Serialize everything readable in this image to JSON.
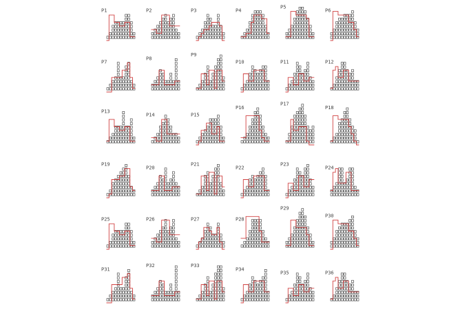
{
  "chart_data": {
    "type": "bar",
    "subtype": "stacked-unit-squares-with-step-line",
    "grid": false,
    "colors": {
      "squares": "#333333",
      "step_line": "#d04040"
    },
    "panels": [
      {
        "name": "P1",
        "counts": [
          1,
          2,
          4,
          5,
          5,
          5,
          5,
          7,
          7,
          5,
          2
        ],
        "step": [
          0,
          7,
          7,
          5,
          5,
          4,
          4,
          5,
          5,
          1,
          1
        ]
      },
      {
        "name": "P2",
        "counts": [
          2,
          3,
          4,
          5,
          6,
          7,
          5,
          6,
          7,
          3,
          2
        ],
        "step": [
          3,
          3,
          2,
          2,
          7,
          7,
          7,
          4,
          4,
          4,
          4
        ]
      },
      {
        "name": "P3",
        "counts": [
          1,
          2,
          3,
          5,
          7,
          6,
          4,
          4,
          7,
          4,
          2
        ],
        "step": [
          0,
          1,
          2,
          3,
          3,
          4,
          5,
          5,
          5,
          4,
          0
        ]
      },
      {
        "name": "P4",
        "counts": [
          1,
          2,
          3,
          5,
          7,
          8,
          8,
          8,
          7,
          4,
          2
        ],
        "step": [
          1,
          1,
          2,
          2,
          5,
          7,
          7,
          7,
          6,
          6,
          2
        ]
      },
      {
        "name": "P5",
        "counts": [
          2,
          3,
          4,
          6,
          8,
          9,
          9,
          8,
          6,
          4,
          2
        ],
        "step": [
          1,
          1,
          8,
          8,
          7,
          7,
          7,
          7,
          6,
          1,
          1
        ]
      },
      {
        "name": "P6",
        "counts": [
          2,
          3,
          5,
          6,
          6,
          7,
          7,
          7,
          8,
          5,
          3
        ],
        "step": [
          0,
          8,
          8,
          7,
          7,
          7,
          7,
          5,
          5,
          3,
          1
        ]
      },
      {
        "name": "P7",
        "counts": [
          1,
          2,
          3,
          4,
          8,
          4,
          4,
          7,
          8,
          3,
          2
        ],
        "step": [
          0,
          0,
          4,
          4,
          4,
          4,
          6,
          6,
          8,
          4,
          1
        ]
      },
      {
        "name": "P8",
        "counts": [
          2,
          3,
          4,
          6,
          5,
          3,
          3,
          5,
          3,
          9,
          3
        ],
        "step": [
          2,
          2,
          2,
          6,
          6,
          2,
          2,
          2,
          2,
          3,
          3
        ]
      },
      {
        "name": "P9",
        "counts": [
          1,
          2,
          3,
          5,
          7,
          3,
          5,
          7,
          9,
          10,
          4
        ],
        "step": [
          1,
          1,
          5,
          5,
          2,
          6,
          6,
          1,
          6,
          6,
          3
        ]
      },
      {
        "name": "P10",
        "counts": [
          1,
          2,
          3,
          5,
          7,
          6,
          5,
          6,
          7,
          7,
          3
        ],
        "step": [
          0,
          5,
          5,
          3,
          3,
          6,
          6,
          6,
          6,
          3,
          3
        ]
      },
      {
        "name": "P11",
        "counts": [
          1,
          2,
          3,
          5,
          8,
          7,
          5,
          6,
          8,
          4,
          3
        ],
        "step": [
          0,
          4,
          4,
          2,
          2,
          5,
          5,
          3,
          3,
          4,
          4
        ]
      },
      {
        "name": "P12",
        "counts": [
          1,
          2,
          4,
          6,
          8,
          8,
          6,
          5,
          6,
          3,
          3
        ],
        "step": [
          1,
          6,
          7,
          4,
          4,
          6,
          6,
          3,
          3,
          3,
          3
        ]
      },
      {
        "name": "P13",
        "counts": [
          1,
          2,
          3,
          5,
          5,
          5,
          9,
          5,
          5,
          7,
          2
        ],
        "step": [
          1,
          7,
          7,
          5,
          5,
          4,
          4,
          5,
          5,
          1,
          1
        ]
      },
      {
        "name": "P14",
        "counts": [
          1,
          2,
          3,
          5,
          6,
          8,
          7,
          5,
          3,
          3,
          2
        ],
        "step": [
          2,
          2,
          1,
          1,
          7,
          7,
          3,
          3,
          3,
          3,
          3
        ]
      },
      {
        "name": "P15",
        "counts": [
          1,
          2,
          3,
          4,
          5,
          7,
          7,
          7,
          8,
          5,
          2
        ],
        "step": [
          0,
          1,
          4,
          4,
          6,
          6,
          3,
          3,
          5,
          1,
          1
        ]
      },
      {
        "name": "P16",
        "counts": [
          1,
          2,
          3,
          5,
          7,
          9,
          10,
          8,
          5,
          3,
          2
        ],
        "step": [
          2,
          2,
          8,
          8,
          8,
          8,
          8,
          4,
          2,
          1,
          1
        ]
      },
      {
        "name": "P17",
        "counts": [
          1,
          3,
          5,
          8,
          9,
          10,
          11,
          8,
          5,
          4,
          5
        ],
        "step": [
          1,
          1,
          7,
          4,
          4,
          5,
          5,
          5,
          1,
          0,
          0
        ]
      },
      {
        "name": "P18",
        "counts": [
          1,
          2,
          3,
          6,
          7,
          9,
          10,
          7,
          5,
          4,
          1
        ],
        "step": [
          1,
          8,
          8,
          7,
          7,
          7,
          7,
          5,
          3,
          1,
          0
        ]
      },
      {
        "name": "P19",
        "counts": [
          1,
          2,
          4,
          5,
          6,
          7,
          8,
          9,
          6,
          3,
          2
        ],
        "step": [
          0,
          1,
          5,
          5,
          5,
          6,
          6,
          8,
          8,
          3,
          2
        ]
      },
      {
        "name": "P20",
        "counts": [
          2,
          3,
          4,
          6,
          5,
          8,
          4,
          5,
          7,
          4,
          3
        ],
        "step": [
          2,
          2,
          2,
          6,
          6,
          2,
          2,
          2,
          3,
          3,
          3
        ]
      },
      {
        "name": "P21",
        "counts": [
          1,
          2,
          3,
          6,
          7,
          4,
          6,
          8,
          9,
          4,
          2
        ],
        "step": [
          1,
          1,
          6,
          6,
          2,
          7,
          7,
          1,
          6,
          6,
          3
        ]
      },
      {
        "name": "P22",
        "counts": [
          1,
          2,
          3,
          5,
          6,
          5,
          6,
          7,
          8,
          6,
          2
        ],
        "step": [
          0,
          5,
          5,
          3,
          3,
          6,
          6,
          6,
          6,
          2,
          2
        ]
      },
      {
        "name": "P23",
        "counts": [
          1,
          2,
          3,
          5,
          8,
          7,
          6,
          8,
          9,
          5,
          3
        ],
        "step": [
          0,
          4,
          4,
          2,
          2,
          6,
          6,
          3,
          3,
          5,
          5
        ]
      },
      {
        "name": "P24",
        "counts": [
          2,
          3,
          4,
          8,
          8,
          4,
          5,
          8,
          8,
          3,
          2
        ],
        "step": [
          2,
          7,
          8,
          4,
          4,
          4,
          7,
          7,
          2,
          2,
          2
        ]
      },
      {
        "name": "P25",
        "counts": [
          1,
          2,
          4,
          5,
          5,
          5,
          5,
          7,
          7,
          5,
          2
        ],
        "step": [
          0,
          7,
          7,
          5,
          5,
          4,
          4,
          5,
          5,
          1,
          1
        ]
      },
      {
        "name": "P26",
        "counts": [
          2,
          3,
          4,
          5,
          6,
          8,
          5,
          6,
          8,
          3,
          2
        ],
        "step": [
          3,
          3,
          2,
          2,
          8,
          8,
          8,
          4,
          4,
          4,
          4
        ]
      },
      {
        "name": "P27",
        "counts": [
          1,
          2,
          3,
          5,
          7,
          6,
          4,
          4,
          7,
          4,
          2
        ],
        "step": [
          0,
          2,
          3,
          6,
          6,
          5,
          4,
          4,
          6,
          2,
          0
        ]
      },
      {
        "name": "P28",
        "counts": [
          1,
          2,
          3,
          5,
          8,
          8,
          8,
          8,
          5,
          3,
          2
        ],
        "step": [
          3,
          3,
          9,
          9,
          9,
          9,
          9,
          5,
          2,
          2,
          2
        ]
      },
      {
        "name": "P29",
        "counts": [
          2,
          3,
          4,
          6,
          8,
          10,
          11,
          9,
          6,
          4,
          2
        ],
        "step": [
          1,
          1,
          8,
          8,
          6,
          6,
          6,
          6,
          4,
          1,
          1
        ]
      },
      {
        "name": "P30",
        "counts": [
          2,
          3,
          5,
          6,
          7,
          7,
          7,
          8,
          9,
          5,
          3
        ],
        "step": [
          0,
          8,
          8,
          7,
          7,
          7,
          7,
          5,
          5,
          3,
          1
        ]
      },
      {
        "name": "P31",
        "counts": [
          1,
          2,
          3,
          4,
          8,
          4,
          4,
          7,
          9,
          3,
          2
        ],
        "step": [
          0,
          0,
          5,
          5,
          5,
          5,
          7,
          7,
          8,
          4,
          1
        ]
      },
      {
        "name": "P32",
        "counts": [
          2,
          3,
          4,
          6,
          5,
          3,
          3,
          5,
          3,
          10,
          3
        ],
        "step": [
          2,
          2,
          2,
          6,
          6,
          2,
          2,
          2,
          2,
          3,
          3
        ]
      },
      {
        "name": "P33",
        "counts": [
          1,
          2,
          3,
          5,
          7,
          3,
          5,
          8,
          10,
          10,
          4
        ],
        "step": [
          1,
          1,
          5,
          5,
          2,
          6,
          6,
          1,
          6,
          6,
          3
        ]
      },
      {
        "name": "P34",
        "counts": [
          1,
          2,
          3,
          5,
          7,
          6,
          5,
          6,
          7,
          9,
          3
        ],
        "step": [
          0,
          5,
          5,
          3,
          3,
          6,
          6,
          6,
          6,
          3,
          3
        ]
      },
      {
        "name": "P35",
        "counts": [
          1,
          2,
          3,
          5,
          8,
          7,
          5,
          6,
          8,
          4,
          3
        ],
        "step": [
          0,
          4,
          4,
          2,
          2,
          5,
          5,
          3,
          3,
          4,
          4
        ]
      },
      {
        "name": "P36",
        "counts": [
          1,
          2,
          4,
          6,
          8,
          8,
          6,
          5,
          6,
          3,
          3
        ],
        "step": [
          1,
          6,
          7,
          4,
          4,
          6,
          6,
          3,
          3,
          3,
          3
        ]
      }
    ]
  }
}
